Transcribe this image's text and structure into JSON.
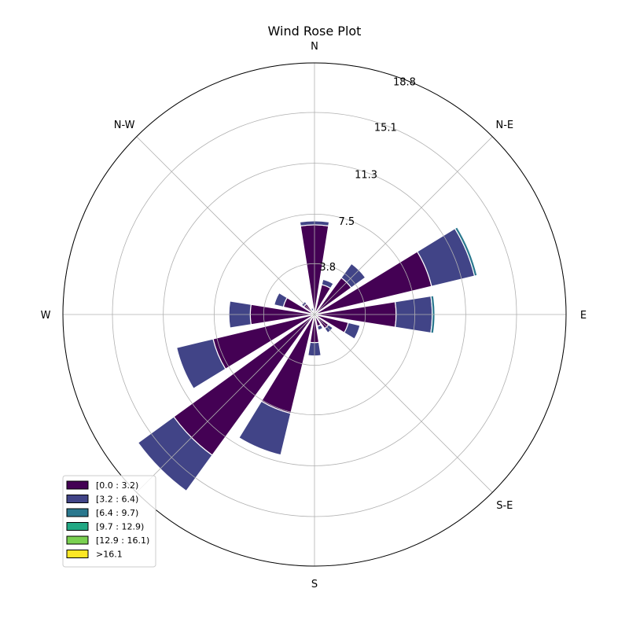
{
  "chart_data": {
    "type": "windrose",
    "title": "Wind Rose Plot",
    "direction_labels": [
      "N",
      "N-E",
      "E",
      "S-E",
      "S",
      "N-W",
      "W"
    ],
    "direction_labels_full": [
      {
        "label": "N",
        "angle_deg": 0
      },
      {
        "label": "N-E",
        "angle_deg": 45
      },
      {
        "label": "E",
        "angle_deg": 90
      },
      {
        "label": "S-E",
        "angle_deg": 135
      },
      {
        "label": "S",
        "angle_deg": 180
      },
      {
        "label": "N-W",
        "angle_deg": 315
      },
      {
        "label": "W",
        "angle_deg": 270
      }
    ],
    "radial_ticks": [
      3.8,
      7.5,
      11.3,
      15.1,
      18.8
    ],
    "radial_tick_labels": [
      "3.8",
      "7.5",
      "11.3",
      "15.1",
      "18.8"
    ],
    "rmax": 18.8,
    "grid": true,
    "legend_position": "lower-left",
    "bins": [
      {
        "label": "[0.0 : 3.2)",
        "color": "#440154"
      },
      {
        "label": "[3.2 : 6.4)",
        "color": "#414487"
      },
      {
        "label": "[6.4 : 9.7)",
        "color": "#2a788e"
      },
      {
        "label": "[9.7 : 12.9)",
        "color": "#22a884"
      },
      {
        "label": "[12.9 : 16.1)",
        "color": "#7ad151"
      },
      {
        "label": ">16.1",
        "color": "#fde725"
      }
    ],
    "sectors": [
      {
        "direction_deg": 0,
        "cumulative": [
          6.7,
          7.0,
          7.0,
          7.0,
          7.0,
          7.0
        ]
      },
      {
        "direction_deg": 22.5,
        "cumulative": [
          2.3,
          2.7,
          2.7,
          2.7,
          2.7,
          2.7
        ]
      },
      {
        "direction_deg": 45,
        "cumulative": [
          3.4,
          4.7,
          4.7,
          4.7,
          4.7,
          4.7
        ]
      },
      {
        "direction_deg": 67.5,
        "cumulative": [
          9.0,
          12.3,
          12.5,
          12.5,
          12.5,
          12.5
        ]
      },
      {
        "direction_deg": 90,
        "cumulative": [
          6.1,
          8.8,
          9.0,
          9.0,
          9.0,
          9.0
        ]
      },
      {
        "direction_deg": 112.5,
        "cumulative": [
          2.6,
          3.5,
          3.5,
          3.5,
          3.5,
          3.5
        ]
      },
      {
        "direction_deg": 135,
        "cumulative": [
          1.3,
          1.7,
          1.7,
          1.7,
          1.7,
          1.7
        ]
      },
      {
        "direction_deg": 157.5,
        "cumulative": [
          0.9,
          1.2,
          1.2,
          1.2,
          1.2,
          1.2
        ]
      },
      {
        "direction_deg": 180,
        "cumulative": [
          2.1,
          3.1,
          3.1,
          3.1,
          3.1,
          3.1
        ]
      },
      {
        "direction_deg": 202.5,
        "cumulative": [
          7.6,
          10.8,
          10.8,
          10.8,
          10.8,
          10.8
        ]
      },
      {
        "direction_deg": 225,
        "cumulative": [
          13.0,
          16.3,
          16.3,
          16.3,
          16.3,
          16.3
        ]
      },
      {
        "direction_deg": 247.5,
        "cumulative": [
          7.8,
          10.6,
          10.6,
          10.6,
          10.6,
          10.6
        ]
      },
      {
        "direction_deg": 270,
        "cumulative": [
          4.8,
          6.4,
          6.4,
          6.4,
          6.4,
          6.4
        ]
      },
      {
        "direction_deg": 292.5,
        "cumulative": [
          2.4,
          3.1,
          3.1,
          3.1,
          3.1,
          3.1
        ]
      },
      {
        "direction_deg": 315,
        "cumulative": [
          1.0,
          1.2,
          1.2,
          1.2,
          1.2,
          1.2
        ]
      },
      {
        "direction_deg": 337.5,
        "cumulative": [
          0.3,
          0.5,
          0.5,
          0.5,
          0.5,
          0.5
        ]
      }
    ]
  }
}
